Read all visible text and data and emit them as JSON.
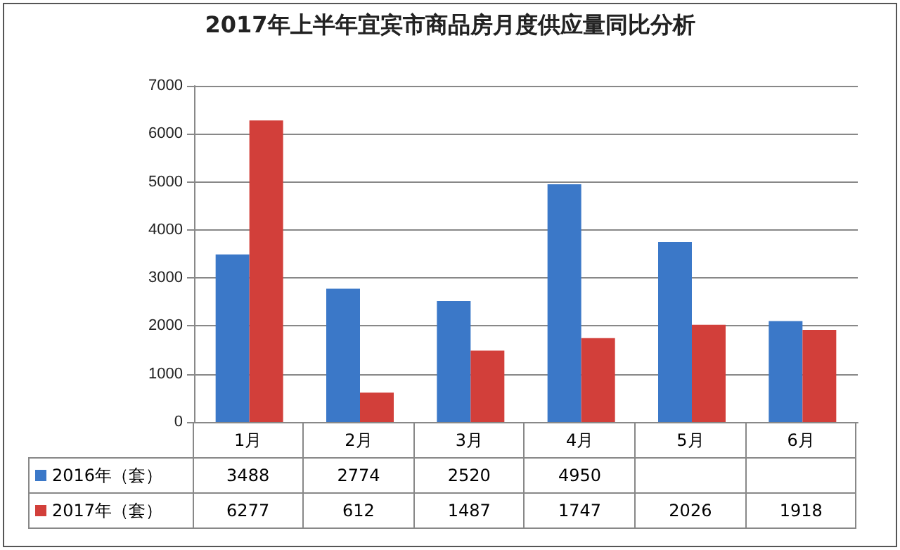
{
  "chart_data": {
    "type": "bar",
    "title": "2017年上半年宜宾市商品房月度供应量同比分析",
    "categories": [
      "1月",
      "2月",
      "3月",
      "4月",
      "5月",
      "6月"
    ],
    "series": [
      {
        "name": "2016年（套）",
        "color": "#3b78c8",
        "values": [
          3488,
          2774,
          2520,
          4950,
          3750,
          2100
        ],
        "value_labels": [
          "3488",
          "2774",
          "2520",
          "4950",
          null,
          null
        ]
      },
      {
        "name": "2017年（套）",
        "color": "#d23f3a",
        "values": [
          6277,
          612,
          1487,
          1747,
          2026,
          1918
        ],
        "value_labels": [
          "6277",
          "612",
          "1487",
          "1747",
          "2026",
          "1918"
        ]
      }
    ],
    "ylim": [
      0,
      7000
    ],
    "yticks": [
      0,
      1000,
      2000,
      3000,
      4000,
      5000,
      6000,
      7000
    ],
    "grid": "y",
    "legend": "bottom left"
  }
}
